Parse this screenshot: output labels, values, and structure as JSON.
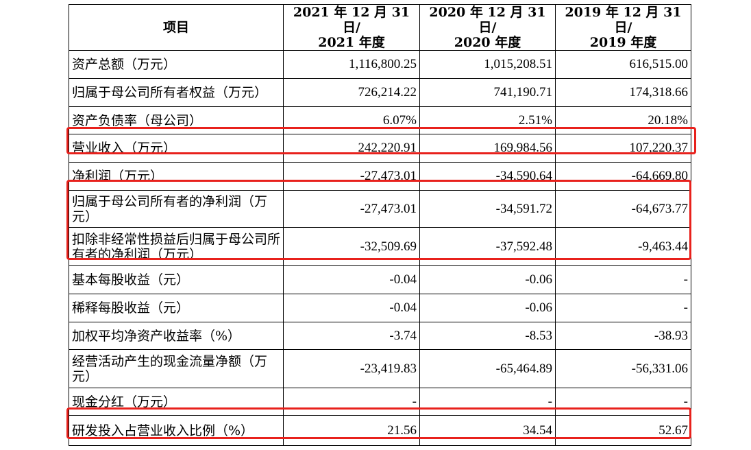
{
  "table": {
    "headers": [
      {
        "line1": "项目",
        "line2": ""
      },
      {
        "line1": "2021 年 12 月 31 日/",
        "line2": "2021 年度"
      },
      {
        "line1": "2020 年 12 月 31 日/",
        "line2": "2020 年度"
      },
      {
        "line1": "2019 年 12 月 31 日/",
        "line2": "2019 年度"
      }
    ],
    "rows": [
      {
        "label": "资产总额（万元）",
        "values": [
          "1,116,800.25",
          "1,015,208.51",
          "616,515.00"
        ]
      },
      {
        "label": "归属于母公司所有者权益（万元）",
        "values": [
          "726,214.22",
          "741,190.71",
          "174,318.66"
        ]
      },
      {
        "label": "资产负债率（母公司）",
        "values": [
          "6.07%",
          "2.51%",
          "20.18%"
        ]
      },
      {
        "label": "营业收入（万元）",
        "values": [
          "242,220.91",
          "169,984.56",
          "107,220.37"
        ]
      },
      {
        "label": "净利润（万元）",
        "values": [
          "-27,473.01",
          "-34,590.64",
          "-64,669.80"
        ]
      },
      {
        "label": "归属于母公司所有者的净利润（万元）",
        "values": [
          "-27,473.01",
          "-34,591.72",
          "-64,673.77"
        ]
      },
      {
        "label": "扣除非经常性损益后归属于母公司所有者的净利润（万元）",
        "values": [
          "-32,509.69",
          "-37,592.48",
          "-9,463.44"
        ]
      },
      {
        "label": "基本每股收益（元）",
        "values": [
          "-0.04",
          "-0.06",
          "-"
        ]
      },
      {
        "label": "稀释每股收益（元）",
        "values": [
          "-0.04",
          "-0.06",
          "-"
        ]
      },
      {
        "label": "加权平均净资产收益率（%）",
        "values": [
          "-3.74",
          "-8.53",
          "-38.93"
        ]
      },
      {
        "label": "经营活动产生的现金流量净额（万元）",
        "values": [
          "-23,419.83",
          "-65,464.89",
          "-56,331.06"
        ]
      },
      {
        "label": "现金分红（万元）",
        "values": [
          "-",
          "-",
          "-"
        ]
      },
      {
        "label": "研发投入占营业收入比例（%）",
        "values": [
          "21.56",
          "34.54",
          "52.67"
        ]
      }
    ]
  },
  "highlight_color": "#e8211c"
}
